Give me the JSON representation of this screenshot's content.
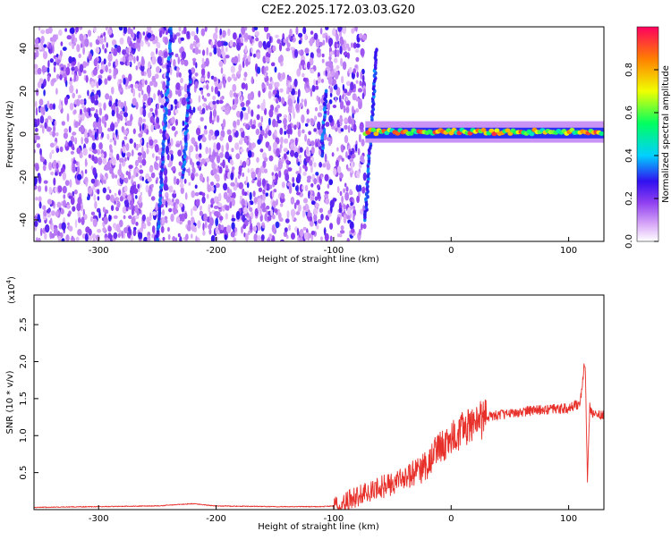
{
  "title": "C2E2.2025.172.03.03.G20",
  "chart_data": [
    {
      "type": "heatmap",
      "title": "C2E2.2025.172.03.03.G20",
      "xlabel": "Height of straight line (km)",
      "ylabel": "Frequency (Hz)",
      "xlim": [
        -355,
        130
      ],
      "ylim": [
        -50,
        50
      ],
      "x_ticks": [
        -300,
        -200,
        -100,
        0,
        100
      ],
      "x_tick_labels": [
        "-300",
        "-200",
        "-100",
        "0",
        "100"
      ],
      "y_ticks": [
        -40,
        -20,
        0,
        20,
        40
      ],
      "y_tick_labels": [
        "-40",
        "-20",
        "0",
        "20",
        "40"
      ],
      "colorbar": {
        "label": "Normalized spectral amplitude",
        "range": [
          0.0,
          1.0
        ],
        "ticks": [
          0.0,
          0.2,
          0.4,
          0.6,
          0.8
        ],
        "tick_labels": [
          "0.0",
          "0.2",
          "0.4",
          "0.6",
          "0.8"
        ],
        "colors": [
          "#ffffff",
          "#d8a8f8",
          "#9040f0",
          "#3010f0",
          "#00d0ff",
          "#00ff60",
          "#f0ff00",
          "#ff8000",
          "#ff0060"
        ]
      },
      "regions": [
        {
          "description": "noise",
          "x_range": [
            -355,
            -73
          ],
          "y_range": [
            -50,
            50
          ],
          "amplitude": 0.15
        },
        {
          "description": "signal band",
          "x_range": [
            -73,
            130
          ],
          "y_range": [
            -3,
            5
          ],
          "amplitude": 0.7
        }
      ]
    },
    {
      "type": "line",
      "xlabel": "Height of straight line (km)",
      "ylabel": "SNR (10 * v/v)",
      "y_multiplier": "(x10",
      "y_multiplier_exp": "4",
      "xlim": [
        -355,
        130
      ],
      "ylim": [
        0,
        2.9
      ],
      "x_ticks": [
        -300,
        -200,
        -100,
        0,
        100
      ],
      "x_tick_labels": [
        "-300",
        "-200",
        "-100",
        "0",
        "100"
      ],
      "y_ticks": [
        0.5,
        1.0,
        1.5,
        2.0,
        2.5
      ],
      "y_tick_labels": [
        "0.5",
        "1.0",
        "1.5",
        "2.0",
        "2.5"
      ],
      "series": [
        {
          "color": "#e8302a",
          "x": [
            -355,
            -300,
            -250,
            -220,
            -200,
            -150,
            -110,
            -100,
            -90,
            -80,
            -70,
            -60,
            -50,
            -40,
            -30,
            -20,
            -15,
            -10,
            -5,
            0,
            10,
            20,
            30,
            40,
            50,
            60,
            70,
            80,
            90,
            100,
            105,
            110,
            112,
            114,
            116,
            118,
            120,
            125,
            130
          ],
          "y": [
            0.03,
            0.04,
            0.05,
            0.08,
            0.05,
            0.04,
            0.04,
            0.05,
            0.1,
            0.18,
            0.22,
            0.3,
            0.35,
            0.42,
            0.5,
            0.6,
            0.75,
            0.85,
            0.88,
            0.95,
            1.08,
            1.18,
            1.24,
            1.28,
            1.3,
            1.32,
            1.34,
            1.35,
            1.36,
            1.37,
            1.4,
            1.45,
            1.8,
            2.0,
            0.4,
            1.4,
            1.3,
            1.29,
            1.29
          ]
        }
      ]
    }
  ]
}
